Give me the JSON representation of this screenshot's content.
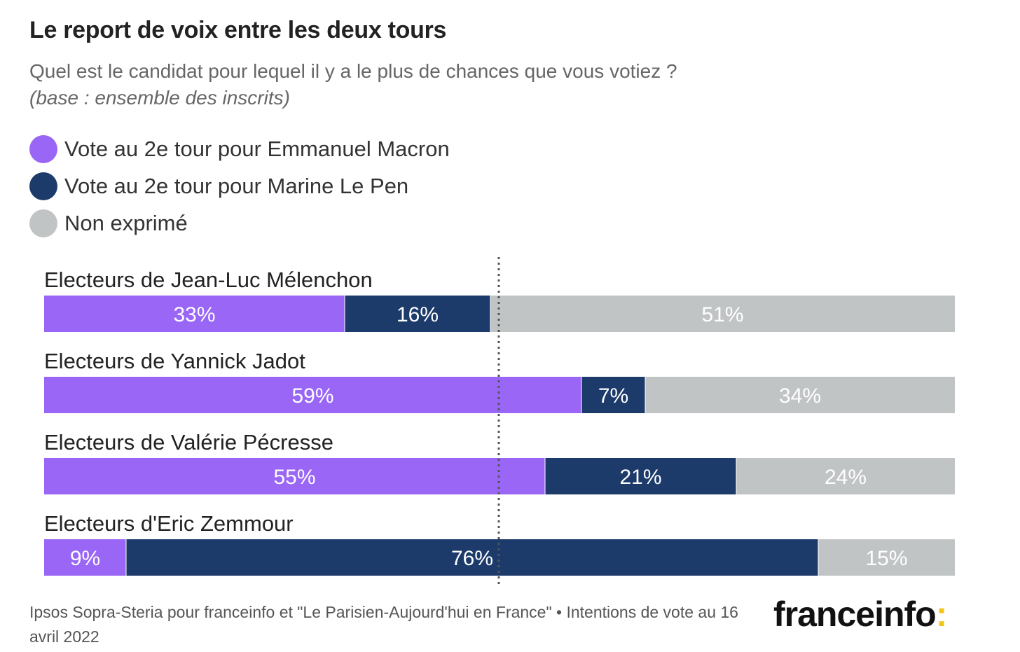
{
  "title": "Le report de voix entre les deux tours",
  "subtitle": "Quel est le candidat pour lequel il y a le plus de chances que vous votiez ?",
  "note": "(base : ensemble des inscrits)",
  "legend": [
    {
      "label": "Vote au 2e tour pour Emmanuel Macron",
      "color": "#9966f5"
    },
    {
      "label": "Vote au 2e tour pour Marine Le Pen",
      "color": "#1c3b6b"
    },
    {
      "label": "Non exprimé",
      "color": "#c1c4c5"
    }
  ],
  "chart_data": {
    "type": "bar",
    "orientation": "horizontal",
    "stacked": true,
    "xlim": [
      0,
      100
    ],
    "reference_line": 50,
    "categories": [
      "Electeurs de Jean-Luc Mélenchon",
      "Electeurs de Yannick Jadot",
      "Electeurs de Valérie Pécresse",
      "Electeurs d'Eric Zemmour"
    ],
    "series": [
      {
        "name": "Vote au 2e tour pour Emmanuel Macron",
        "color": "#9966f5",
        "values": [
          33,
          59,
          55,
          9
        ],
        "labels": [
          "33%",
          "59%",
          "55%",
          "9%"
        ]
      },
      {
        "name": "Vote au 2e tour pour Marine Le Pen",
        "color": "#1c3b6b",
        "values": [
          16,
          7,
          21,
          76
        ],
        "labels": [
          "16%",
          "7%",
          "21%",
          "76%"
        ]
      },
      {
        "name": "Non exprimé",
        "color": "#c1c4c5",
        "values": [
          51,
          34,
          24,
          15
        ],
        "labels": [
          "51%",
          "34%",
          "24%",
          "15%"
        ]
      }
    ]
  },
  "footer": "Ipsos Sopra-Steria pour franceinfo et \"Le Parisien-Aujourd'hui en France\" • Intentions de vote au 16 avril 2022",
  "logo": {
    "text": "franceinfo",
    "dots": ":"
  }
}
